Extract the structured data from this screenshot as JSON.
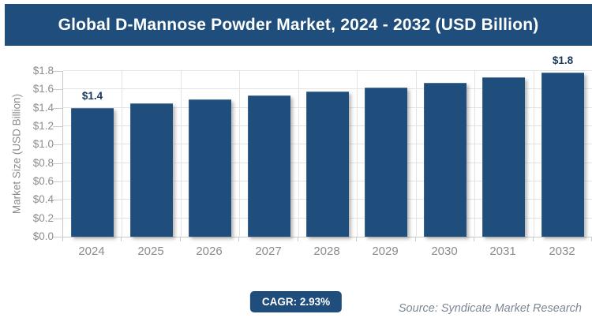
{
  "header": {
    "title": "Global D-Mannose Powder Market, 2024 - 2032 (USD Billion)"
  },
  "chart_data": {
    "type": "bar",
    "title": "Global D-Mannose Powder Market, 2024 - 2032 (USD Billion)",
    "categories": [
      "2024",
      "2025",
      "2026",
      "2027",
      "2028",
      "2029",
      "2030",
      "2031",
      "2032"
    ],
    "values": [
      1.4,
      1.45,
      1.49,
      1.53,
      1.58,
      1.62,
      1.67,
      1.73,
      1.78
    ],
    "point_labels": [
      "$1.4",
      "",
      "",
      "",
      "",
      "",
      "",
      "",
      "$1.8"
    ],
    "xlabel": "",
    "ylabel": "Market Size (USD Billion)",
    "ylim": [
      0,
      1.8
    ],
    "ytick_step": 0.2,
    "ytick_labels": [
      "$0.0",
      "$0.2",
      "$0.4",
      "$0.6",
      "$0.8",
      "$1.0",
      "$1.2",
      "$1.4",
      "$1.6",
      "$1.8"
    ],
    "grid": true,
    "legend": false
  },
  "footer": {
    "cagr_label": "CAGR: 2.93%",
    "source": "Source: Syndicate Market Research"
  },
  "colors": {
    "accent_navy": "#1f4e7c",
    "data_label_navy": "#17375d",
    "grid_line": "#e3e3e3",
    "axis_line": "#c9c9c9",
    "tick_text": "#8c8c8c",
    "source_text": "#7b8794"
  }
}
